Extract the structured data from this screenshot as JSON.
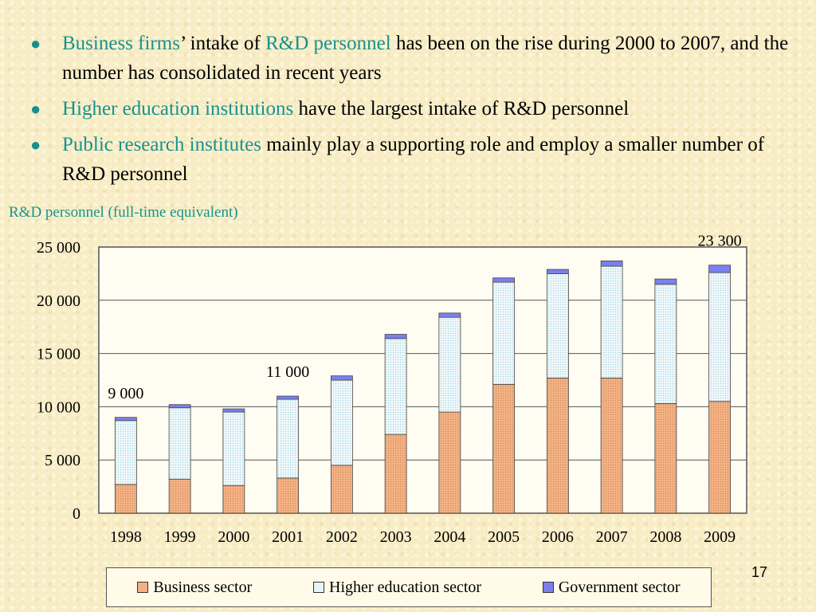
{
  "bullets": [
    {
      "highlight1": "Business firms",
      "text1": "’ intake of ",
      "highlight2": "R&D personnel",
      "text2": " has been on the rise during 2000 to 2007, and the number has consolidated in recent years"
    },
    {
      "highlight1": "Higher education institutions",
      "text1": " have the largest intake of R&D personnel",
      "highlight2": "",
      "text2": ""
    },
    {
      "highlight1": "Public research institutes",
      "text1": " mainly play a supporting role and employ a smaller number of R&D personnel",
      "highlight2": "",
      "text2": ""
    }
  ],
  "chart_data": {
    "type": "bar",
    "stacked": true,
    "title": "R&D personnel (full-time equivalent)",
    "categories": [
      "1998",
      "1999",
      "2000",
      "2001",
      "2002",
      "2003",
      "2004",
      "2005",
      "2006",
      "2007",
      "2008",
      "2009"
    ],
    "series": [
      {
        "name": "Business sector",
        "color": "#f4b183",
        "values": [
          2700,
          3200,
          2600,
          3300,
          4500,
          7400,
          9500,
          12100,
          12700,
          12700,
          10300,
          10500
        ]
      },
      {
        "name": "Higher education sector",
        "color": "#e6f4f9",
        "values": [
          6000,
          6700,
          6900,
          7400,
          8000,
          9000,
          8900,
          9600,
          9800,
          10500,
          11200,
          12100
        ]
      },
      {
        "name": "Government sector",
        "color": "#7b7ff0",
        "values": [
          300,
          300,
          300,
          300,
          400,
          400,
          400,
          400,
          400,
          500,
          500,
          700
        ]
      }
    ],
    "yticks": [
      "0",
      "5 000",
      "10 000",
      "15 000",
      "20 000",
      "25 000"
    ],
    "ylim": [
      0,
      25000
    ],
    "annotations": [
      {
        "label": "9 000",
        "category": "1998"
      },
      {
        "label": "11 000",
        "category": "2001"
      },
      {
        "label": "23 300",
        "category": "2009"
      }
    ],
    "grid": true,
    "legend_position": "bottom"
  },
  "page_number": "17"
}
